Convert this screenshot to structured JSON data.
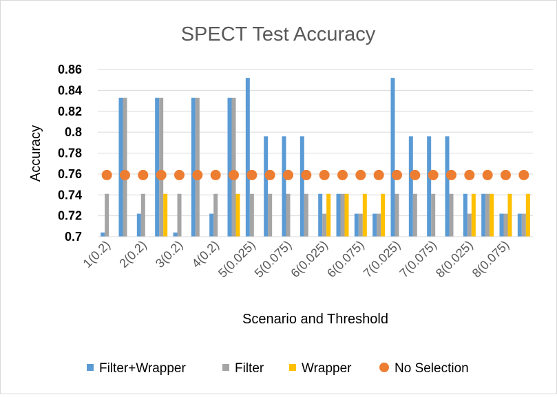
{
  "chart_data": {
    "type": "bar",
    "title": "SPECT Test Accuracy",
    "xlabel": "Scenario and Threshold",
    "ylabel": "Accuracy",
    "ylim": [
      0.7,
      0.86
    ],
    "yticks": [
      "0.7",
      "0.72",
      "0.74",
      "0.76",
      "0.78",
      "0.8",
      "0.82",
      "0.84",
      "0.86"
    ],
    "categories": [
      "1(0.2)",
      "1(0.2)",
      "2(0.2)",
      "2(0.2)",
      "3(0.2)",
      "3(0.2)",
      "4(0.2)",
      "4(0.2)",
      "5(0.025)",
      "5(0.025)",
      "5(0.075)",
      "5(0.075)",
      "6(0.025)",
      "6(0.025)",
      "6(0.075)",
      "6(0.075)",
      "7(0.025)",
      "7(0.025)",
      "7(0.075)",
      "7(0.075)",
      "8(0.025)",
      "8(0.025)",
      "8(0.075)",
      "8(0.075)"
    ],
    "visible_tick_labels": [
      "1(0.2)",
      "2(0.2)",
      "3(0.2)",
      "4(0.2)",
      "5(0.025)",
      "5(0.075)",
      "6(0.025)",
      "6(0.075)",
      "7(0.025)",
      "7(0.075)",
      "8(0.025)",
      "8(0.075)"
    ],
    "series": [
      {
        "name": "Filter+Wrapper",
        "type": "bar",
        "color": "#5B9BD5",
        "values": [
          0.704,
          0.833,
          0.722,
          0.833,
          0.704,
          0.833,
          0.722,
          0.833,
          0.852,
          0.796,
          0.796,
          0.796,
          0.741,
          0.741,
          0.722,
          0.722,
          0.852,
          0.796,
          0.796,
          0.796,
          0.741,
          0.741,
          0.722,
          0.722
        ]
      },
      {
        "name": "Filter",
        "type": "bar",
        "color": "#A5A5A5",
        "values": [
          0.741,
          0.833,
          0.741,
          0.833,
          0.741,
          0.833,
          0.741,
          0.833,
          0.741,
          0.741,
          0.741,
          0.741,
          0.722,
          0.741,
          0.722,
          0.722,
          0.741,
          0.741,
          0.741,
          0.741,
          0.722,
          0.741,
          0.722,
          0.722
        ]
      },
      {
        "name": "Wrapper",
        "type": "bar",
        "color": "#FFC000",
        "values": [
          0.7,
          0.7,
          0.7,
          0.741,
          0.7,
          0.7,
          0.7,
          0.741,
          0.7,
          0.7,
          0.7,
          0.7,
          0.741,
          0.741,
          0.741,
          0.741,
          0.7,
          0.7,
          0.7,
          0.7,
          0.741,
          0.741,
          0.741,
          0.741
        ]
      },
      {
        "name": "No Selection",
        "type": "marker",
        "color": "#ED7D31",
        "values": [
          0.759,
          0.759,
          0.759,
          0.759,
          0.759,
          0.759,
          0.759,
          0.759,
          0.759,
          0.759,
          0.759,
          0.759,
          0.759,
          0.759,
          0.759,
          0.759,
          0.759,
          0.759,
          0.759,
          0.759,
          0.759,
          0.759,
          0.759,
          0.759
        ]
      }
    ],
    "grid": true,
    "legend_position": "bottom"
  }
}
